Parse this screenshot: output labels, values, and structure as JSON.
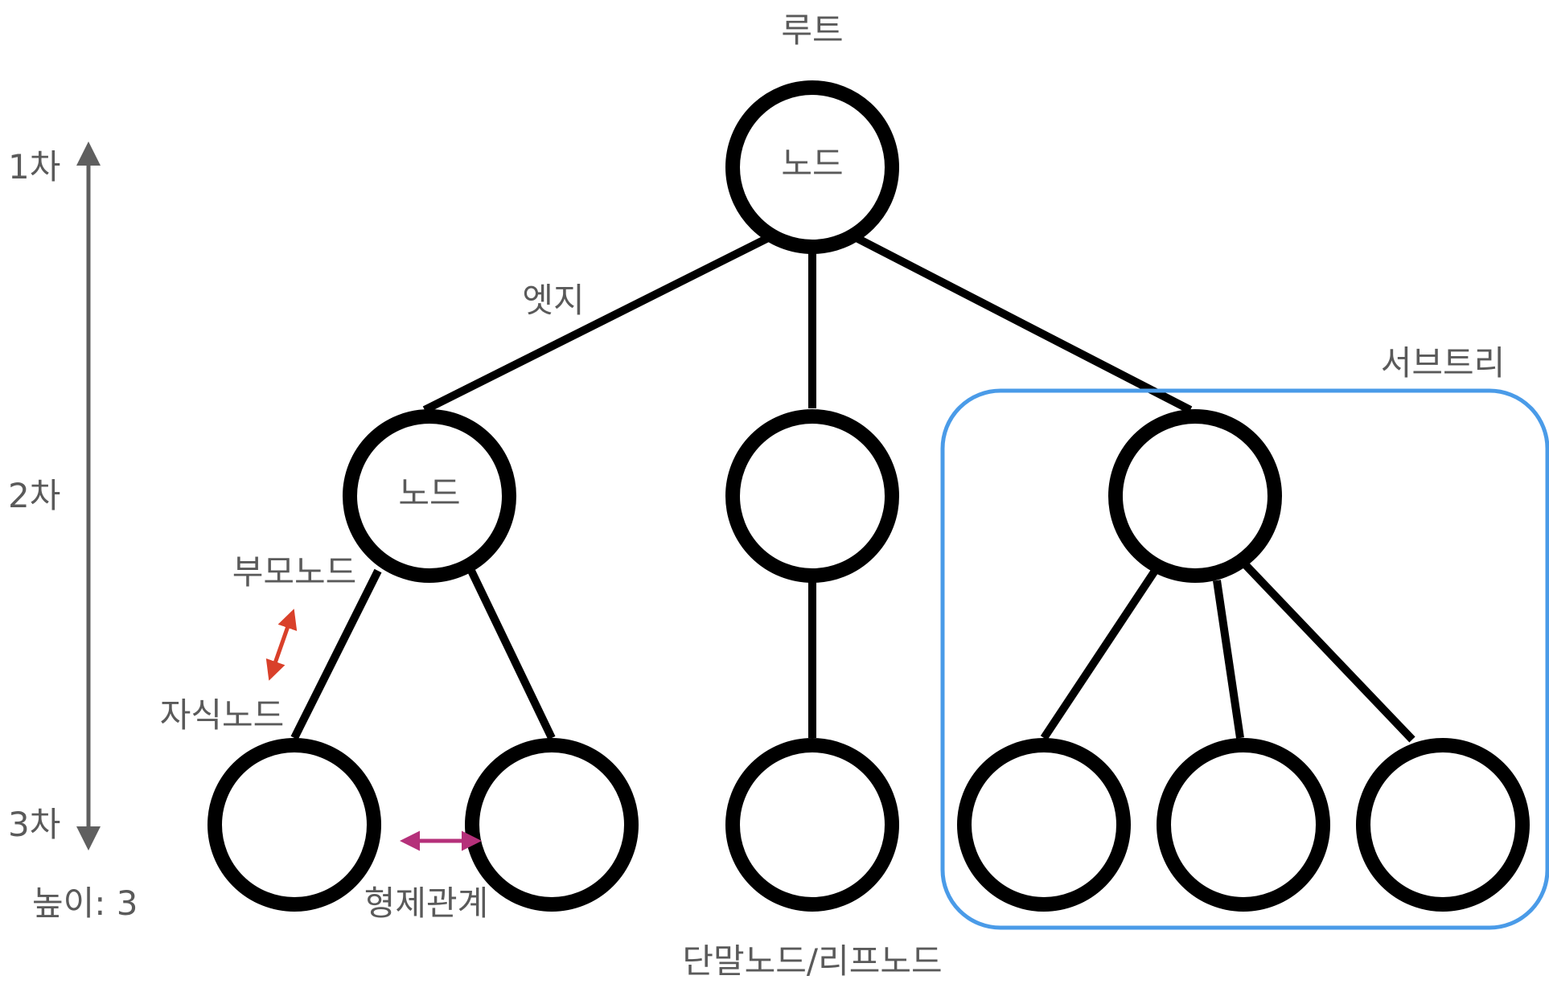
{
  "labels": {
    "root": "루트",
    "root_node": "노드",
    "left_node": "노드",
    "edge": "엣지",
    "subtree": "서브트리",
    "parent_node": "부모노드",
    "child_node": "자식노드",
    "siblings": "형제관계",
    "leaf_node": "단말노드/리프노드",
    "level1": "1차",
    "level2": "2차",
    "level3": "3차",
    "height": "높이: 3"
  },
  "colors": {
    "node_stroke": "#000000",
    "text": "#5a5a5a",
    "subtree_box": "#4a9be8",
    "parent_child_arrow": "#d9402a",
    "sibling_arrow": "#b5307a",
    "level_arrow": "#5f5f5f"
  }
}
